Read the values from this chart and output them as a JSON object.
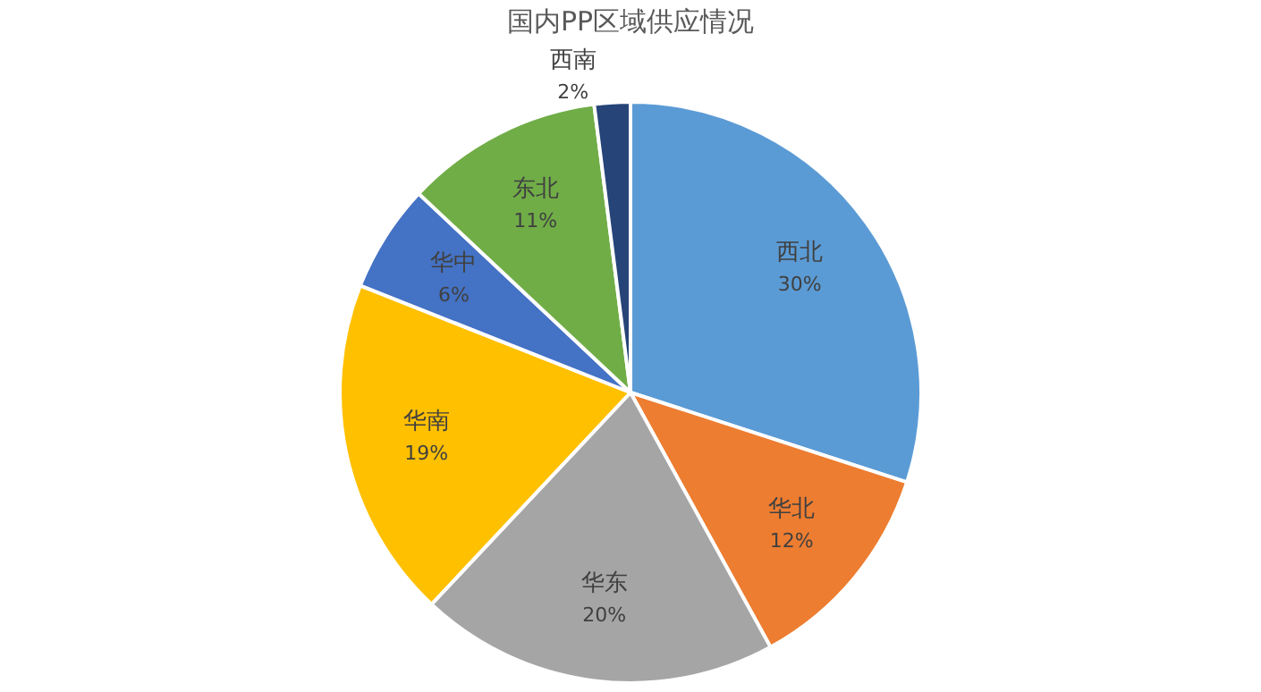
{
  "chart_data": {
    "type": "pie",
    "title": "国内PP区域供应情况",
    "categories": [
      "西北",
      "华北",
      "华东",
      "华南",
      "华中",
      "东北",
      "西南"
    ],
    "values": [
      30,
      12,
      20,
      19,
      6,
      11,
      2
    ],
    "colors": [
      "#5b9bd5",
      "#ed7d31",
      "#a5a5a5",
      "#ffc000",
      "#4472c4",
      "#70ad47",
      "#264478"
    ],
    "value_labels": [
      "30%",
      "12%",
      "20%",
      "19%",
      "6%",
      "11%",
      "2%"
    ],
    "legend": false
  }
}
